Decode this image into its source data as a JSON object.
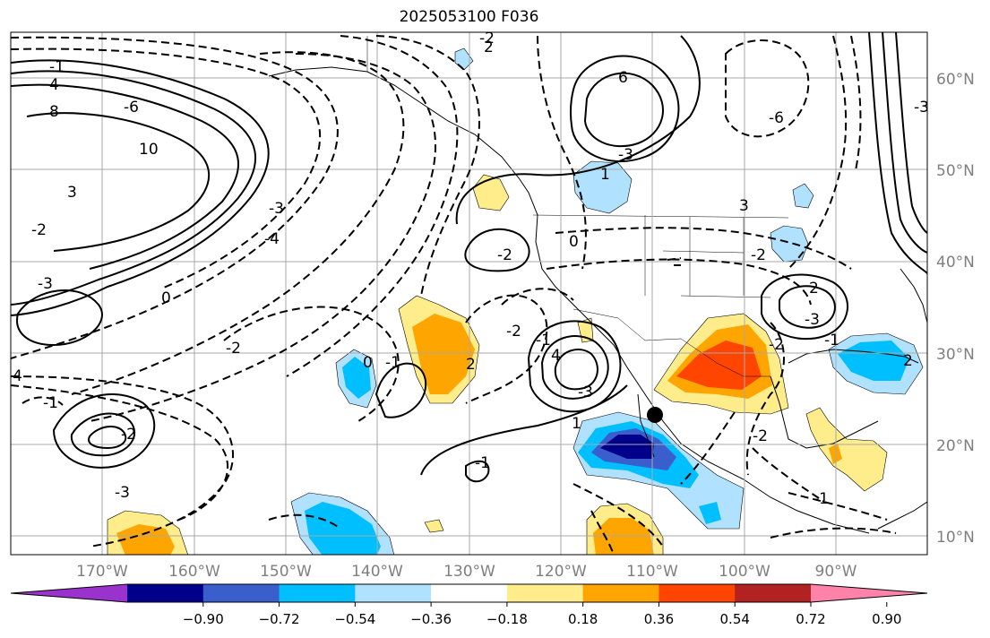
{
  "title": "2025053100 F036",
  "map": {
    "projection": "equirectangular",
    "lon_range": [
      -180,
      -80
    ],
    "lat_range": [
      8,
      66
    ],
    "lat_labels": [
      "60°N",
      "50°N",
      "40°N",
      "30°N",
      "20°N",
      "10°N"
    ],
    "lon_labels": [
      "170°W",
      "160°W",
      "150°W",
      "140°W",
      "130°W",
      "120°W",
      "110°W",
      "100°W",
      "90°W"
    ],
    "contour_labels": [
      "-2",
      "2",
      "6",
      "-1",
      "4",
      "8",
      "-6",
      "10",
      "3",
      "-2",
      "-4",
      "-3",
      "0",
      "-2",
      "-3",
      "-1",
      "-2",
      "-3",
      "-4",
      "-1",
      "0",
      "2",
      "-2",
      "4",
      "-3",
      "-1",
      "-2",
      "-1",
      "1",
      "0",
      "1",
      "-6",
      "-3",
      "3",
      "-2",
      "2",
      "-3",
      "-2",
      "-2",
      "-1",
      "2",
      "-1",
      "-3"
    ],
    "marker": "station-dot"
  },
  "colorbar": {
    "tick_labels": [
      "−0.90",
      "−0.72",
      "−0.54",
      "−0.36",
      "−0.18",
      "0.18",
      "0.36",
      "0.54",
      "0.72",
      "0.90"
    ],
    "colors": [
      "#9a32cd",
      "#00008b",
      "#3a5fcd",
      "#00bfff",
      "#b0e2ff",
      "#ffffff",
      "#ffec8b",
      "#ffa500",
      "#ff4500",
      "#b22222",
      "#ff82ab"
    ],
    "extend": "both"
  },
  "colors": {
    "grid": "#a9a9a9",
    "label": "#7f7f7f",
    "contour": "#000000"
  }
}
